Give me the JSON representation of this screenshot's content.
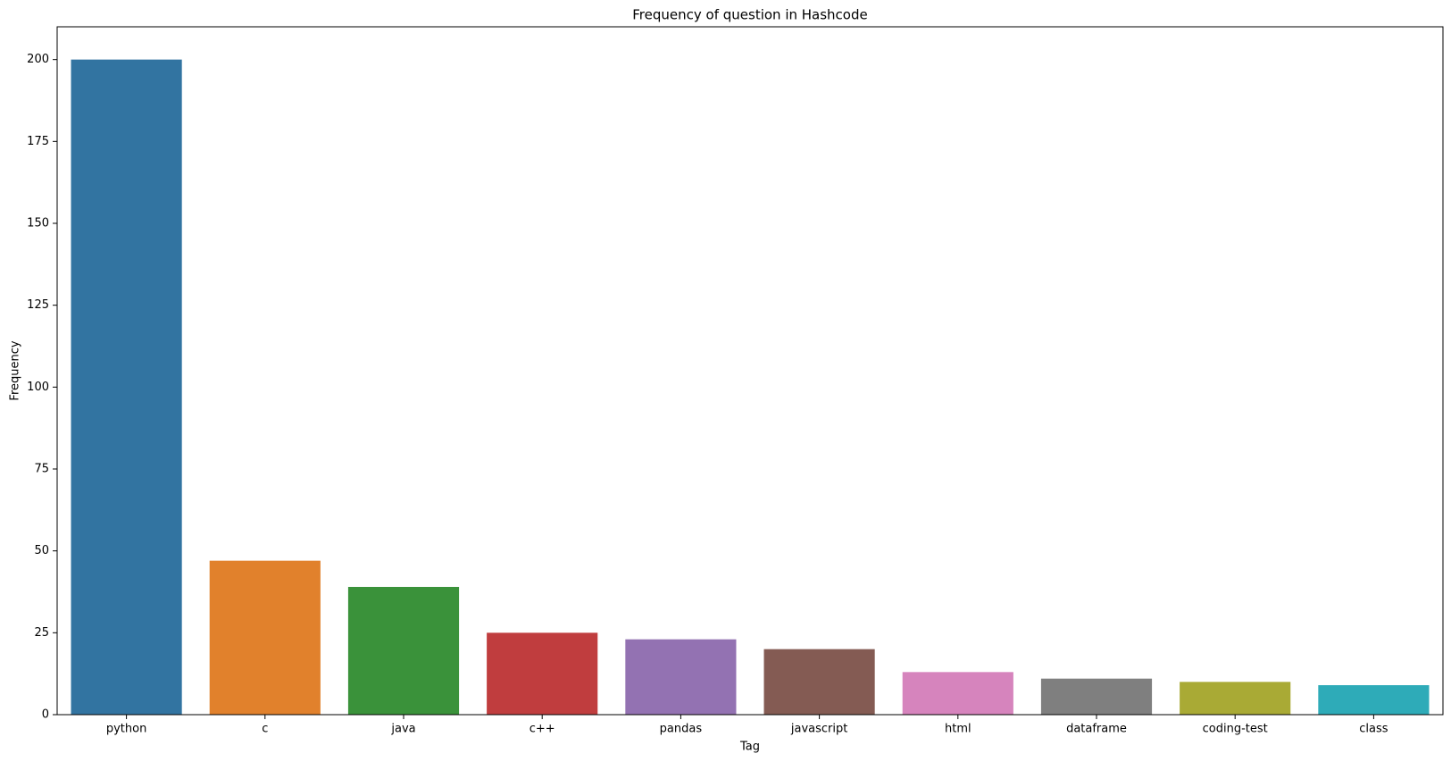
{
  "chart_data": {
    "type": "bar",
    "title": "Frequency of question in Hashcode",
    "x_label": "Tag",
    "y_label": "Frequency",
    "categories": [
      "python",
      "c",
      "java",
      "c++",
      "pandas",
      "javascript",
      "html",
      "dataframe",
      "coding-test",
      "class"
    ],
    "values": [
      200,
      47,
      39,
      25,
      23,
      20,
      13,
      11,
      10,
      9
    ],
    "colors": [
      "#3274a1",
      "#e1812c",
      "#3a923a",
      "#c03d3e",
      "#9372b2",
      "#845b53",
      "#d684bd",
      "#7f7f7f",
      "#a9aa35",
      "#2eabb8"
    ],
    "ylim": [
      0,
      210
    ],
    "yticks": [
      0,
      25,
      50,
      75,
      100,
      125,
      150,
      175,
      200
    ],
    "grid": false
  }
}
